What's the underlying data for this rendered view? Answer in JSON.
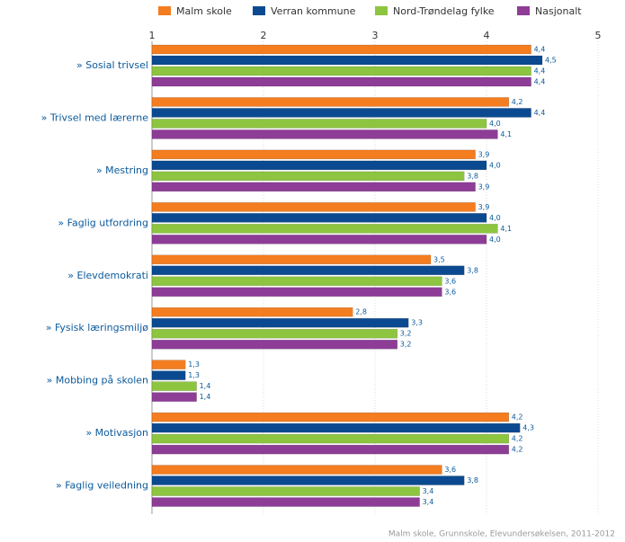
{
  "chart_data": {
    "type": "hbar",
    "categories": [
      "» Sosial trivsel",
      "» Trivsel med lærerne",
      "» Mestring",
      "» Faglig utfordring",
      "» Elevdemokrati",
      "» Fysisk læringsmiljø",
      "» Mobbing på skolen",
      "» Motivasjon",
      "» Faglig veiledning"
    ],
    "series": [
      {
        "name": "Malm skole",
        "color": "#f47d20",
        "values": [
          4.4,
          4.2,
          3.9,
          3.9,
          3.5,
          2.8,
          1.3,
          4.2,
          3.6
        ],
        "value_labels": [
          "4,4",
          "4,2",
          "3,9",
          "3,9",
          "3,5",
          "2,8",
          "1,3",
          "4,2",
          "3,6"
        ]
      },
      {
        "name": "Verran kommune",
        "color": "#0b4a90",
        "values": [
          4.5,
          4.4,
          4.0,
          4.0,
          3.8,
          3.3,
          1.3,
          4.3,
          3.8
        ],
        "value_labels": [
          "4,5",
          "4,4",
          "4,0",
          "4,0",
          "3,8",
          "3,3",
          "1,3",
          "4,3",
          "3,8"
        ]
      },
      {
        "name": "Nord-Trøndelag fylke",
        "color": "#8dc540",
        "values": [
          4.4,
          4.0,
          3.8,
          4.1,
          3.6,
          3.2,
          1.4,
          4.2,
          3.4
        ],
        "value_labels": [
          "4,4",
          "4,0",
          "3,8",
          "4,1",
          "3,6",
          "3,2",
          "1,4",
          "4,2",
          "3,4"
        ]
      },
      {
        "name": "Nasjonalt",
        "color": "#8e3d97",
        "values": [
          4.4,
          4.1,
          3.9,
          4.0,
          3.6,
          3.2,
          1.4,
          4.2,
          3.4
        ],
        "value_labels": [
          "4,4",
          "4,1",
          "3,9",
          "4,0",
          "3,6",
          "3,2",
          "1,4",
          "4,2",
          "3,4"
        ]
      }
    ],
    "xlim": [
      1,
      5
    ],
    "xticks": [
      1,
      2,
      3,
      4,
      5
    ],
    "grid": true,
    "footnote": "Malm skole, Grunnskole, Elevundersøkelsen, 2011-2012"
  }
}
